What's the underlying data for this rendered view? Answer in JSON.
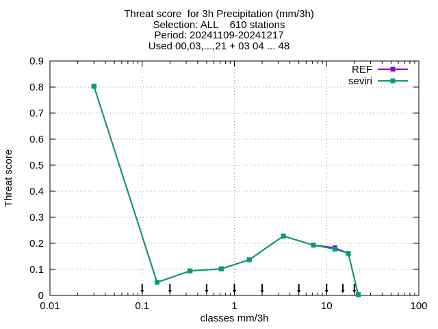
{
  "chart_data": {
    "type": "line",
    "title_lines": [
      "Threat score  for 3h Precipitation (mm/3h)",
      "Selection: ALL    610 stations",
      "Period: 20241109-20241217",
      "Used 00,03,...,21 + 03 04 ... 48"
    ],
    "xlabel": "classes mm/3h",
    "ylabel": "Threat score",
    "xscale": "log",
    "xlim": [
      0.01,
      100
    ],
    "ylim": [
      0,
      0.9
    ],
    "xticks": [
      0.01,
      0.1,
      1,
      10,
      100
    ],
    "xtick_labels": [
      "0.01",
      "0.1",
      "1",
      "10",
      "100"
    ],
    "yticks": [
      0,
      0.1,
      0.2,
      0.3,
      0.4,
      0.5,
      0.6,
      0.7,
      0.8,
      0.9
    ],
    "ytick_labels": [
      "0",
      "0.1",
      "0.2",
      "0.3",
      "0.4",
      "0.5",
      "0.6",
      "0.7",
      "0.8",
      "0.9"
    ],
    "grid": true,
    "legend_position": "top-right",
    "class_markers": [
      0.1,
      0.2,
      0.5,
      1,
      2,
      5,
      10,
      15,
      20
    ],
    "series": [
      {
        "name": "REF",
        "color": "#9400d3",
        "x": [
          0.03,
          0.145,
          0.33,
          0.72,
          1.45,
          3.4,
          7.2,
          12.3,
          17.2,
          22
        ],
        "y": [
          0.803,
          0.05,
          0.094,
          0.102,
          0.137,
          0.228,
          0.193,
          0.183,
          0.161,
          0.003
        ]
      },
      {
        "name": "seviri",
        "color": "#009e73",
        "x": [
          0.03,
          0.145,
          0.33,
          0.72,
          1.45,
          3.4,
          7.2,
          12.3,
          17.2,
          22
        ],
        "y": [
          0.803,
          0.05,
          0.094,
          0.102,
          0.137,
          0.228,
          0.193,
          0.178,
          0.161,
          0.003
        ]
      }
    ]
  }
}
